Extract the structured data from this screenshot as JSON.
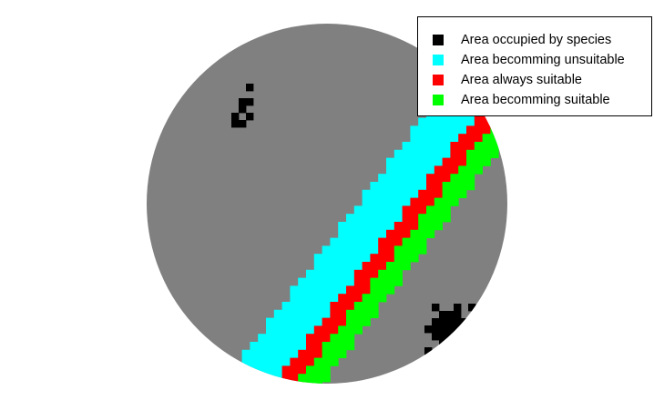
{
  "colors": {
    "background_habitat": "#808080",
    "occupied": "#000000",
    "becoming_unsuitable": "#00ffff",
    "always_suitable": "#ff0000",
    "becoming_suitable": "#00ff00"
  },
  "legend": {
    "items": [
      {
        "label": "Area occupied by species",
        "color": "#000000"
      },
      {
        "label": "Area becomming unsuitable",
        "color": "#00ffff"
      },
      {
        "label": "Area always suitable",
        "color": "#ff0000"
      },
      {
        "label": "Area becomming suitable",
        "color": "#00ff00"
      }
    ]
  }
}
